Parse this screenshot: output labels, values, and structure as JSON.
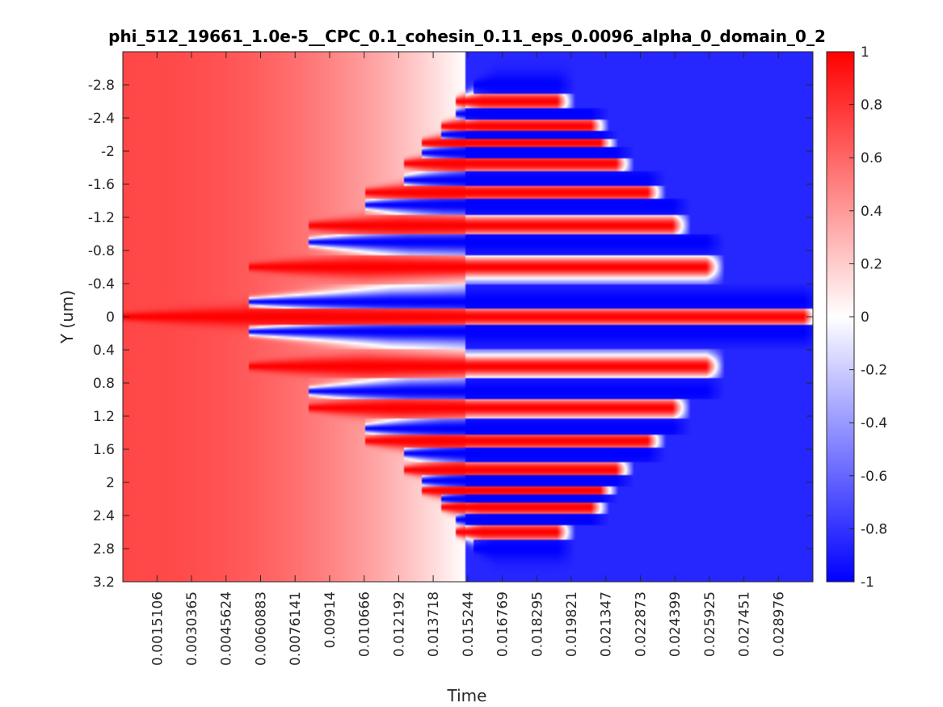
{
  "chart_data": {
    "type": "heatmap",
    "title": "phi_512_19661_1.0e-5__CPC_0.1_cohesin_0.11_eps_0.0096_alpha_0_domain_0_2",
    "xlabel": "Time",
    "ylabel": "Y (um)",
    "xlim": [
      0,
      0.0305
    ],
    "ylim": [
      -3.2,
      3.2
    ],
    "y_reversed": true,
    "x_ticks": [
      0.0015106,
      0.0030365,
      0.0045624,
      0.0060883,
      0.0076141,
      0.00914,
      0.010666,
      0.012192,
      0.013718,
      0.015244,
      0.016769,
      0.018295,
      0.019821,
      0.021347,
      0.022873,
      0.024399,
      0.025925,
      0.027451,
      0.028976
    ],
    "x_tick_labels": [
      "0.0015106",
      "0.0030365",
      "0.0045624",
      "0.0060883",
      "0.0076141",
      "0.00914",
      "0.010666",
      "0.012192",
      "0.013718",
      "0.015244",
      "0.016769",
      "0.018295",
      "0.019821",
      "0.021347",
      "0.022873",
      "0.024399",
      "0.025925",
      "0.027451",
      "0.028976"
    ],
    "y_ticks": [
      -2.8,
      -2.4,
      -2.0,
      -1.6,
      -1.2,
      -0.8,
      -0.4,
      0,
      0.4,
      0.8,
      1.2,
      1.6,
      2.0,
      2.4,
      2.8,
      3.2
    ],
    "y_tick_labels": [
      "-2.8",
      "-2.4",
      "-2",
      "-1.6",
      "-1.2",
      "-0.8",
      "-0.4",
      "0",
      "0.4",
      "0.8",
      "1.2",
      "1.6",
      "2",
      "2.4",
      "2.8",
      "3.2"
    ],
    "colorbar": {
      "clim": [
        -1,
        1
      ],
      "colormap": "blue-white-red",
      "colors": {
        "low": "#0000ff",
        "mid": "#ffffff",
        "high": "#ff0000"
      },
      "ticks": [
        1,
        0.8,
        0.6,
        0.4,
        0.2,
        0,
        -0.2,
        -0.4,
        -0.6,
        -0.8,
        -1
      ],
      "tick_labels": [
        "1",
        "0.8",
        "0.6",
        "0.4",
        "0.2",
        "0",
        "-0.2",
        "-0.4",
        "-0.6",
        "-0.8",
        "-1"
      ]
    },
    "stripes": [
      {
        "y": 0,
        "value": 1,
        "start_time": 0,
        "end_time": 0.0305
      },
      {
        "y": 0.18,
        "value": -1,
        "start_time": 0.0056,
        "end_time": 0.0305
      },
      {
        "y": 0.6,
        "value": 1,
        "start_time": 0.0056,
        "end_time": 0.0262
      },
      {
        "y": 0.9,
        "value": -1,
        "start_time": 0.0082,
        "end_time": 0.0262
      },
      {
        "y": 1.1,
        "value": 1,
        "start_time": 0.0082,
        "end_time": 0.0247
      },
      {
        "y": 1.35,
        "value": -1,
        "start_time": 0.0107,
        "end_time": 0.0247
      },
      {
        "y": 1.5,
        "value": 1,
        "start_time": 0.0107,
        "end_time": 0.0236
      },
      {
        "y": 1.65,
        "value": -1,
        "start_time": 0.0124,
        "end_time": 0.0236
      },
      {
        "y": 1.85,
        "value": 1,
        "start_time": 0.0124,
        "end_time": 0.0222
      },
      {
        "y": 1.98,
        "value": -1,
        "start_time": 0.0132,
        "end_time": 0.0222
      },
      {
        "y": 2.1,
        "value": 1,
        "start_time": 0.0132,
        "end_time": 0.0215
      },
      {
        "y": 2.2,
        "value": -1,
        "start_time": 0.0141,
        "end_time": 0.0215
      },
      {
        "y": 2.3,
        "value": 1,
        "start_time": 0.0141,
        "end_time": 0.0211
      },
      {
        "y": 2.45,
        "value": -1,
        "start_time": 0.0147,
        "end_time": 0.0211
      },
      {
        "y": 2.6,
        "value": 1,
        "start_time": 0.0147,
        "end_time": 0.0196
      },
      {
        "y": 2.8,
        "value": -1,
        "start_time": 0.0155,
        "end_time": 0.0196
      }
    ]
  }
}
